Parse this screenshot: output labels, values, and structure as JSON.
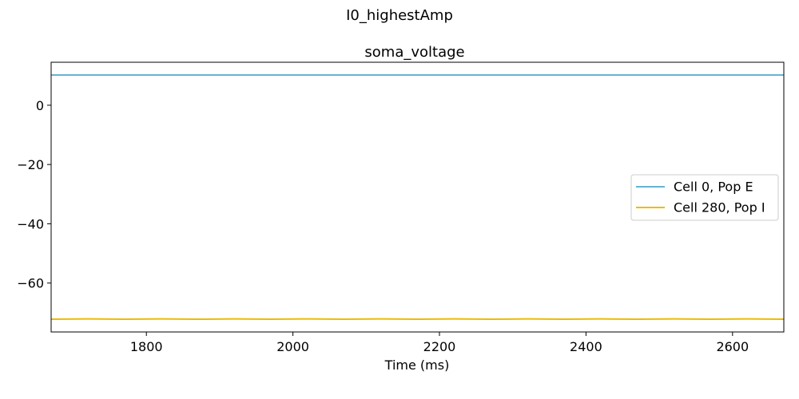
{
  "figure": {
    "suptitle": "I0_highestAmp"
  },
  "chart_data": {
    "type": "line",
    "title": "soma_voltage",
    "xlabel": "Time (ms)",
    "ylabel": "",
    "xlim": [
      1670,
      2670
    ],
    "ylim": [
      -76.5,
      14.5
    ],
    "x_ticks": [
      1800,
      2000,
      2200,
      2400,
      2600
    ],
    "y_ticks": [
      0,
      -20,
      -40,
      -60
    ],
    "x_tick_labels": [
      "1800",
      "2000",
      "2200",
      "2400",
      "2600"
    ],
    "y_tick_labels": [
      "0",
      "−20",
      "−40",
      "−60"
    ],
    "grid": false,
    "legend_position": "center-right",
    "series": [
      {
        "name": "Cell 0, Pop E",
        "color": "#67B3D1",
        "x": [
          1670,
          2670
        ],
        "y": [
          10.2,
          10.2
        ]
      },
      {
        "name": "Cell 280, Pop I",
        "color": "#EEBB00",
        "x": [
          1670,
          1720,
          1770,
          1820,
          1870,
          1920,
          1970,
          2020,
          2070,
          2120,
          2170,
          2220,
          2270,
          2320,
          2370,
          2420,
          2470,
          2520,
          2570,
          2620,
          2670
        ],
        "y": [
          -72.2,
          -72.1,
          -72.2,
          -72.1,
          -72.2,
          -72.1,
          -72.2,
          -72.1,
          -72.2,
          -72.1,
          -72.2,
          -72.1,
          -72.2,
          -72.1,
          -72.2,
          -72.1,
          -72.2,
          -72.1,
          -72.2,
          -72.1,
          -72.2
        ]
      }
    ]
  }
}
